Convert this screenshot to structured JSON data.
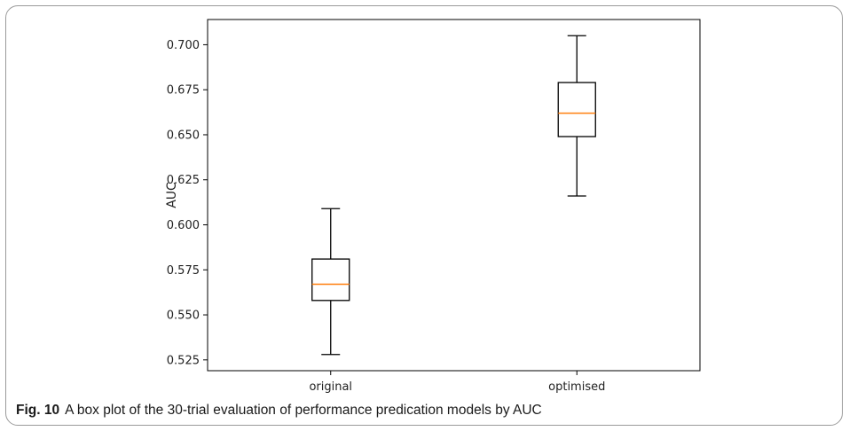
{
  "caption": {
    "label": "Fig. 10",
    "text": "A box plot of the 30-trial evaluation of performance predication models by AUC"
  },
  "colors": {
    "median": "#ff7f0e",
    "box": "#000000",
    "frame": "#9a9a9a"
  },
  "chart_data": {
    "type": "box",
    "title": "",
    "xlabel": "",
    "ylabel": "AUC",
    "ylim": [
      0.519,
      0.714
    ],
    "yticks": [
      0.525,
      0.55,
      0.575,
      0.6,
      0.625,
      0.65,
      0.675,
      0.7
    ],
    "ytick_labels": [
      "0.525",
      "0.550",
      "0.575",
      "0.600",
      "0.625",
      "0.650",
      "0.675",
      "0.700"
    ],
    "categories": [
      "original",
      "optimised"
    ],
    "boxes": [
      {
        "label": "original",
        "whisker_low": 0.528,
        "q1": 0.558,
        "median": 0.567,
        "q3": 0.581,
        "whisker_high": 0.609
      },
      {
        "label": "optimised",
        "whisker_low": 0.616,
        "q1": 0.649,
        "median": 0.662,
        "q3": 0.679,
        "whisker_high": 0.705
      }
    ],
    "grid": false,
    "legend": "none"
  }
}
